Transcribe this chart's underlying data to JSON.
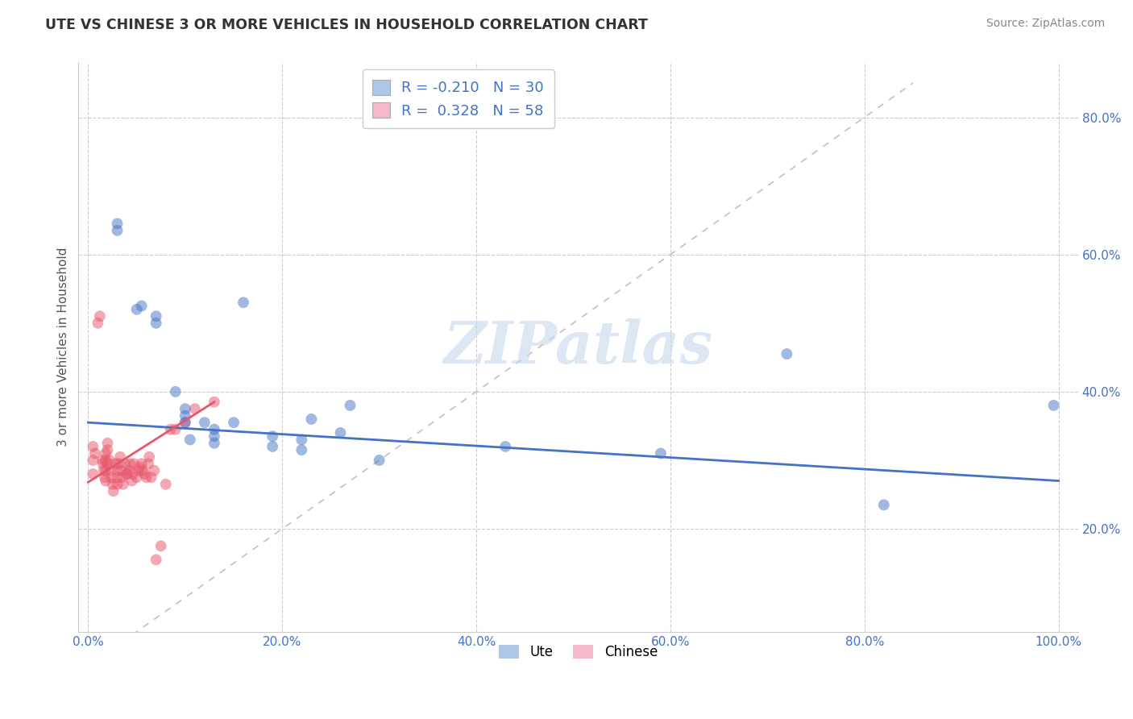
{
  "title": "UTE VS CHINESE 3 OR MORE VEHICLES IN HOUSEHOLD CORRELATION CHART",
  "source": "Source: ZipAtlas.com",
  "ylabel": "3 or more Vehicles in Household",
  "xlim": [
    -0.01,
    1.02
  ],
  "ylim": [
    0.05,
    0.88
  ],
  "xticks": [
    0.0,
    0.2,
    0.4,
    0.6,
    0.8,
    1.0
  ],
  "xtick_labels": [
    "0.0%",
    "20.0%",
    "40.0%",
    "60.0%",
    "80.0%",
    "100.0%"
  ],
  "yticks": [
    0.2,
    0.4,
    0.6,
    0.8
  ],
  "ytick_labels": [
    "20.0%",
    "40.0%",
    "60.0%",
    "80.0%"
  ],
  "legend_entries": [
    {
      "label": "Ute",
      "color": "#aec6e8",
      "R": "-0.210",
      "N": "30"
    },
    {
      "label": "Chinese",
      "color": "#f4b8c8",
      "R": "0.328",
      "N": "58"
    }
  ],
  "ute_scatter_x": [
    0.03,
    0.03,
    0.05,
    0.055,
    0.07,
    0.07,
    0.09,
    0.1,
    0.1,
    0.1,
    0.105,
    0.12,
    0.13,
    0.13,
    0.13,
    0.15,
    0.16,
    0.19,
    0.19,
    0.22,
    0.22,
    0.23,
    0.26,
    0.27,
    0.3,
    0.43,
    0.59,
    0.72,
    0.82,
    0.995
  ],
  "ute_scatter_y": [
    0.635,
    0.645,
    0.52,
    0.525,
    0.5,
    0.51,
    0.4,
    0.355,
    0.365,
    0.375,
    0.33,
    0.355,
    0.325,
    0.335,
    0.345,
    0.355,
    0.53,
    0.32,
    0.335,
    0.315,
    0.33,
    0.36,
    0.34,
    0.38,
    0.3,
    0.32,
    0.31,
    0.455,
    0.235,
    0.38
  ],
  "chinese_scatter_x": [
    0.005,
    0.005,
    0.005,
    0.007,
    0.01,
    0.012,
    0.015,
    0.015,
    0.016,
    0.017,
    0.018,
    0.018,
    0.018,
    0.018,
    0.02,
    0.02,
    0.02,
    0.022,
    0.023,
    0.024,
    0.025,
    0.026,
    0.028,
    0.03,
    0.03,
    0.03,
    0.032,
    0.033,
    0.034,
    0.035,
    0.036,
    0.038,
    0.04,
    0.04,
    0.042,
    0.043,
    0.045,
    0.046,
    0.047,
    0.05,
    0.052,
    0.053,
    0.055,
    0.056,
    0.058,
    0.06,
    0.062,
    0.063,
    0.065,
    0.068,
    0.07,
    0.075,
    0.08,
    0.085,
    0.09,
    0.1,
    0.11,
    0.13
  ],
  "chinese_scatter_y": [
    0.32,
    0.3,
    0.28,
    0.31,
    0.5,
    0.51,
    0.3,
    0.295,
    0.285,
    0.275,
    0.31,
    0.3,
    0.285,
    0.27,
    0.295,
    0.315,
    0.325,
    0.3,
    0.285,
    0.275,
    0.265,
    0.255,
    0.295,
    0.285,
    0.275,
    0.265,
    0.295,
    0.305,
    0.285,
    0.275,
    0.265,
    0.295,
    0.28,
    0.28,
    0.285,
    0.295,
    0.27,
    0.28,
    0.295,
    0.275,
    0.285,
    0.29,
    0.295,
    0.285,
    0.28,
    0.275,
    0.295,
    0.305,
    0.275,
    0.285,
    0.155,
    0.175,
    0.265,
    0.345,
    0.345,
    0.355,
    0.375,
    0.385
  ],
  "ute_line_color": "#4472c4",
  "chinese_line_color": "#e8556a",
  "diagonal_color": "#c0c0c0",
  "background_color": "#ffffff",
  "grid_color": "#cccccc",
  "scatter_alpha": 0.5,
  "scatter_size": 100,
  "ute_line_x": [
    0.0,
    1.0
  ],
  "ute_line_y": [
    0.355,
    0.27
  ],
  "chinese_line_x": [
    0.0,
    0.13
  ],
  "chinese_line_y": [
    0.268,
    0.385
  ],
  "watermark": "ZIPatlas",
  "watermark_color": "#c5d8ec"
}
